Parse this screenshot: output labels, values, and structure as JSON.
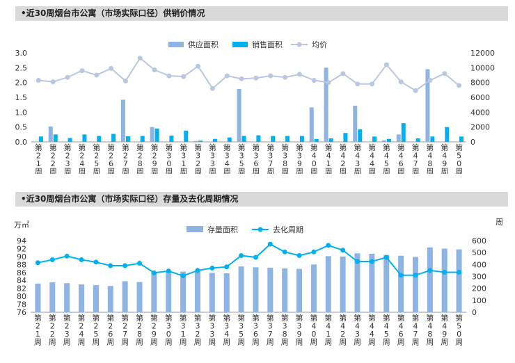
{
  "sections": [
    {
      "title": "•近30周烟台市公寓（市场实际口径）供销价情况"
    },
    {
      "title": "•近30周烟台市公寓（市场实际口径）存量及去化周期情况"
    }
  ],
  "colors": {
    "supply": "#8eb4e3",
    "sales": "#00b0f0",
    "price": "#b9c7e0",
    "stock": "#8eb4e3",
    "cycle": "#00b0f0",
    "header_bg": "#d9d9d9"
  },
  "chart_data": [
    {
      "type": "bar",
      "title": "",
      "categories": [
        "第21周",
        "第22周",
        "第23周",
        "第24周",
        "第25周",
        "第26周",
        "第27周",
        "第28周",
        "第29周",
        "第30周",
        "第31周",
        "第32周",
        "第33周",
        "第34周",
        "第35周",
        "第36周",
        "第37周",
        "第38周",
        "第39周",
        "第40周",
        "第41周",
        "第42周",
        "第43周",
        "第44周",
        "第45周",
        "第46周",
        "第47周",
        "第48周",
        "第49周",
        "第50周"
      ],
      "series": [
        {
          "name": "供应面积",
          "type": "bar",
          "axis": "left",
          "values": [
            0,
            0.52,
            0,
            0,
            0,
            0,
            1.42,
            0,
            0.5,
            0,
            0,
            0.03,
            0,
            0,
            1.78,
            0,
            0,
            0,
            0,
            1.16,
            2.5,
            0,
            1.22,
            0,
            0.05,
            0.25,
            0,
            2.45,
            0,
            0
          ]
        },
        {
          "name": "销售面积",
          "type": "bar",
          "axis": "left",
          "values": [
            0.18,
            0.25,
            0.13,
            0.25,
            0.2,
            0.27,
            0.19,
            0.2,
            0.45,
            0.21,
            0.38,
            0.04,
            0.1,
            0.15,
            0.2,
            0.22,
            0.2,
            0.2,
            0.2,
            0.1,
            0.12,
            0.3,
            0.42,
            0.18,
            0.1,
            0.63,
            0.12,
            0.18,
            0.5,
            0.18
          ]
        },
        {
          "name": "均价",
          "type": "line",
          "axis": "right",
          "values": [
            8300,
            8100,
            8700,
            9600,
            9000,
            9900,
            8200,
            11300,
            9700,
            8900,
            8800,
            10200,
            7200,
            8900,
            8500,
            8600,
            8900,
            8700,
            9100,
            8300,
            8000,
            9200,
            7800,
            7800,
            10400,
            8100,
            6900,
            8300,
            9200,
            7600
          ]
        }
      ],
      "y_left": {
        "min": 0,
        "max": 3.0,
        "ticks": [
          "0.0",
          "0.5",
          "1.0",
          "1.5",
          "2.0",
          "2.5",
          "3.0"
        ]
      },
      "y_right": {
        "min": 0,
        "max": 12000,
        "ticks": [
          "0",
          "2000",
          "4000",
          "6000",
          "8000",
          "10000",
          "12000"
        ]
      },
      "legend": "top-center"
    },
    {
      "type": "bar",
      "title": "",
      "categories": [
        "第21周",
        "第22周",
        "第23周",
        "第24周",
        "第25周",
        "第26周",
        "第27周",
        "第28周",
        "第29周",
        "第30周",
        "第31周",
        "第32周",
        "第33周",
        "第34周",
        "第35周",
        "第36周",
        "第37周",
        "第38周",
        "第39周",
        "第40周",
        "第41周",
        "第42周",
        "第43周",
        "第44周",
        "第45周",
        "第46周",
        "第47周",
        "第48周",
        "第49周",
        "第50周"
      ],
      "series": [
        {
          "name": "存量面积",
          "type": "bar",
          "axis": "left",
          "values": [
            83.2,
            83.5,
            83.3,
            83.0,
            82.8,
            82.6,
            83.8,
            83.6,
            86.2,
            86.3,
            86.2,
            86.3,
            85.9,
            85.8,
            87.5,
            87.3,
            87.2,
            87.0,
            86.9,
            88.0,
            90.1,
            90.0,
            90.8,
            90.7,
            90.4,
            90.2,
            89.9,
            92.3,
            92.0,
            91.8
          ]
        },
        {
          "name": "去化周期",
          "type": "line",
          "axis": "right",
          "values": [
            415,
            440,
            470,
            440,
            420,
            390,
            390,
            410,
            330,
            345,
            305,
            350,
            370,
            380,
            475,
            460,
            570,
            505,
            475,
            505,
            560,
            520,
            425,
            425,
            460,
            310,
            310,
            350,
            335,
            335
          ]
        }
      ],
      "y_left": {
        "min": 76,
        "max": 94,
        "ticks": [
          "76",
          "78",
          "80",
          "82",
          "84",
          "86",
          "88",
          "90",
          "92",
          "94"
        ],
        "unit": "万㎡"
      },
      "y_right": {
        "min": 0,
        "max": 600,
        "ticks": [
          "0",
          "100",
          "200",
          "300",
          "400",
          "500",
          "600"
        ],
        "unit": "周"
      },
      "legend": "top-center"
    }
  ]
}
